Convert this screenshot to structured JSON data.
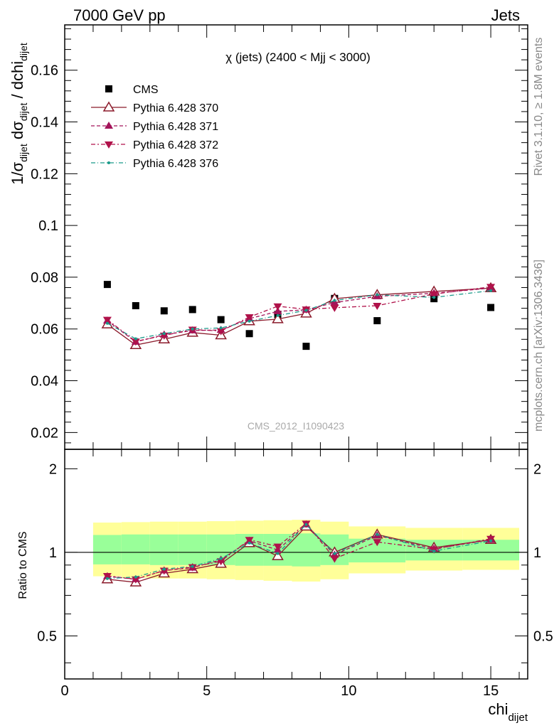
{
  "header": {
    "left": "7000 GeV pp",
    "right": "Jets"
  },
  "side_labels": {
    "top": "Rivet 3.1.10, ≥ 1.8M events",
    "bottom": "mcplots.cern.ch [arXiv:1306.3436]"
  },
  "colors": {
    "cms": "#000000",
    "p370": "#8b1a2b",
    "p371": "#a3145a",
    "p372": "#b0124a",
    "p376": "#1a9a8a",
    "band_outer": "#ffff99",
    "band_inner": "#99ff99"
  },
  "chart_data": [
    {
      "type": "scatter",
      "title": "χ (jets) (2400 < Mjj < 3000)",
      "watermark": "CMS_2012_I1090423",
      "xlabel_main": "chi",
      "xlabel_sub": "dijet",
      "ylabel": "1/σ_dijet dσ_dijet / dchi_dijet",
      "xlim": [
        0,
        16.3
      ],
      "ylim": [
        0.0135,
        0.1775
      ],
      "xticks": [
        0,
        5,
        10,
        15
      ],
      "yticks": [
        0.02,
        0.04,
        0.06,
        0.08,
        0.1,
        0.12,
        0.14,
        0.16
      ],
      "ytick_labels": [
        "0.02",
        "0.04",
        "0.06",
        "0.08",
        "0.1",
        "0.12",
        "0.14",
        "0.16"
      ],
      "legend_position": "top-left",
      "x": [
        1.5,
        2.5,
        3.5,
        4.5,
        5.5,
        6.5,
        7.5,
        8.5,
        9.5,
        11,
        13,
        15
      ],
      "series": [
        {
          "name": "CMS",
          "values": [
            0.0772,
            0.069,
            0.067,
            0.0675,
            0.0636,
            0.0582,
            0.0656,
            0.0533,
            0.0718,
            0.0632,
            0.0717,
            0.0683
          ]
        },
        {
          "name": "Pythia 6.428 370",
          "values": [
            0.0618,
            0.0538,
            0.056,
            0.0586,
            0.0576,
            0.063,
            0.0638,
            0.066,
            0.0717,
            0.0732,
            0.0745,
            0.0758
          ]
        },
        {
          "name": "Pythia 6.428 371",
          "values": [
            0.0632,
            0.055,
            0.0578,
            0.0594,
            0.0596,
            0.064,
            0.0668,
            0.0674,
            0.0702,
            0.0726,
            0.0738,
            0.0758
          ]
        },
        {
          "name": "Pythia 6.428 372",
          "values": [
            0.0636,
            0.0552,
            0.0575,
            0.0598,
            0.0592,
            0.0646,
            0.0688,
            0.0676,
            0.0682,
            0.069,
            0.0735,
            0.0763
          ]
        },
        {
          "name": "Pythia 6.428 376",
          "values": [
            0.0622,
            0.0562,
            0.0582,
            0.06,
            0.0604,
            0.063,
            0.0652,
            0.0672,
            0.071,
            0.0732,
            0.0722,
            0.0748
          ]
        }
      ]
    },
    {
      "type": "line",
      "ylabel": "Ratio to CMS",
      "xlim": [
        0,
        16.3
      ],
      "ylim": [
        0.35,
        2.35
      ],
      "yscale": "log",
      "xticks": [
        0,
        5,
        10,
        15
      ],
      "xtick_labels": [
        "0",
        "5",
        "10",
        "15"
      ],
      "yticks": [
        0.5,
        1,
        2
      ],
      "ytick_labels": [
        "0.5",
        "1",
        "2"
      ],
      "bins": [
        [
          1,
          2
        ],
        [
          2,
          3
        ],
        [
          3,
          4
        ],
        [
          4,
          5
        ],
        [
          5,
          6
        ],
        [
          6,
          7
        ],
        [
          7,
          8
        ],
        [
          8,
          9
        ],
        [
          9,
          10
        ],
        [
          10,
          12
        ],
        [
          12,
          14
        ],
        [
          14,
          16
        ]
      ],
      "band_outer": [
        [
          0.82,
          1.28
        ],
        [
          0.81,
          1.285
        ],
        [
          0.805,
          1.29
        ],
        [
          0.805,
          1.29
        ],
        [
          0.8,
          1.295
        ],
        [
          0.795,
          1.3
        ],
        [
          0.79,
          1.305
        ],
        [
          0.785,
          1.31
        ],
        [
          0.8,
          1.29
        ],
        [
          0.84,
          1.24
        ],
        [
          0.86,
          1.225
        ],
        [
          0.865,
          1.225
        ]
      ],
      "band_inner": [
        [
          0.905,
          1.155
        ],
        [
          0.905,
          1.16
        ],
        [
          0.9,
          1.16
        ],
        [
          0.9,
          1.16
        ],
        [
          0.9,
          1.16
        ],
        [
          0.895,
          1.165
        ],
        [
          0.895,
          1.165
        ],
        [
          0.89,
          1.17
        ],
        [
          0.9,
          1.16
        ],
        [
          0.92,
          1.12
        ],
        [
          0.935,
          1.11
        ],
        [
          0.935,
          1.11
        ]
      ],
      "x": [
        1.5,
        2.5,
        3.5,
        4.5,
        5.5,
        6.5,
        7.5,
        8.5,
        9.5,
        11,
        13,
        15
      ],
      "series": [
        {
          "name": "Pythia 6.428 370",
          "values": [
            0.8,
            0.78,
            0.84,
            0.87,
            0.91,
            1.08,
            0.97,
            1.24,
            1.0,
            1.16,
            1.04,
            1.11
          ]
        },
        {
          "name": "Pythia 6.428 371",
          "values": [
            0.82,
            0.8,
            0.86,
            0.88,
            0.94,
            1.1,
            1.02,
            1.26,
            0.98,
            1.15,
            1.03,
            1.11
          ]
        },
        {
          "name": "Pythia 6.428 372",
          "values": [
            0.823,
            0.8,
            0.86,
            0.885,
            0.93,
            1.11,
            1.05,
            1.27,
            0.95,
            1.09,
            1.025,
            1.12
          ]
        },
        {
          "name": "Pythia 6.428 376",
          "values": [
            0.805,
            0.815,
            0.87,
            0.89,
            0.95,
            1.08,
            0.99,
            1.26,
            0.99,
            1.16,
            1.01,
            1.1
          ]
        }
      ]
    }
  ]
}
